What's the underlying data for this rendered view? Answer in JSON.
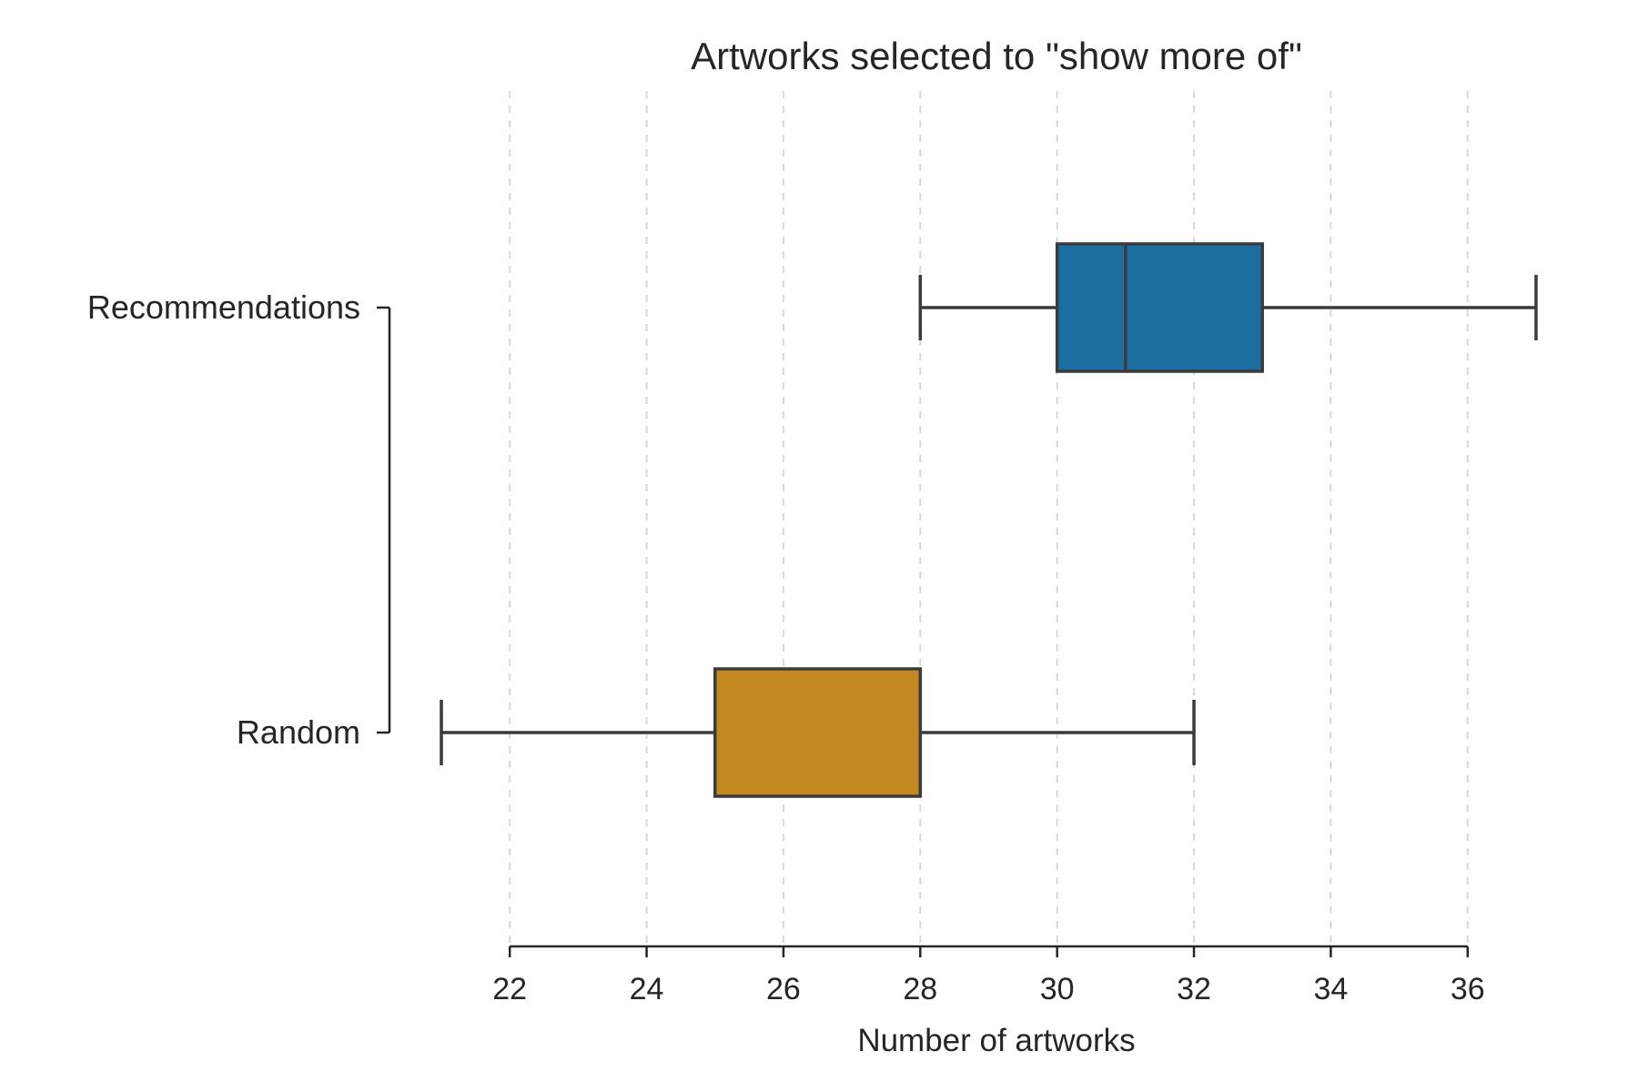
{
  "chart_data": {
    "type": "boxplot",
    "orientation": "horizontal",
    "title": "Artworks selected to \"show more of\"",
    "xlabel": "Number of artworks",
    "ylabel": "",
    "xlim": [
      21,
      37.2
    ],
    "xticks": [
      22,
      24,
      26,
      28,
      30,
      32,
      34,
      36
    ],
    "grid": "vertical-dashed",
    "categories": [
      "Recommendations",
      "Random"
    ],
    "boxes": [
      {
        "category": "Recommendations",
        "whisker_low": 28,
        "q1": 30,
        "median": 31,
        "q3": 33,
        "whisker_high": 37,
        "color": "#1a6fa0"
      },
      {
        "category": "Random",
        "whisker_low": 21,
        "q1": 25,
        "median": 28,
        "q3": 28,
        "whisker_high": 32,
        "color": "#c48820"
      }
    ]
  }
}
